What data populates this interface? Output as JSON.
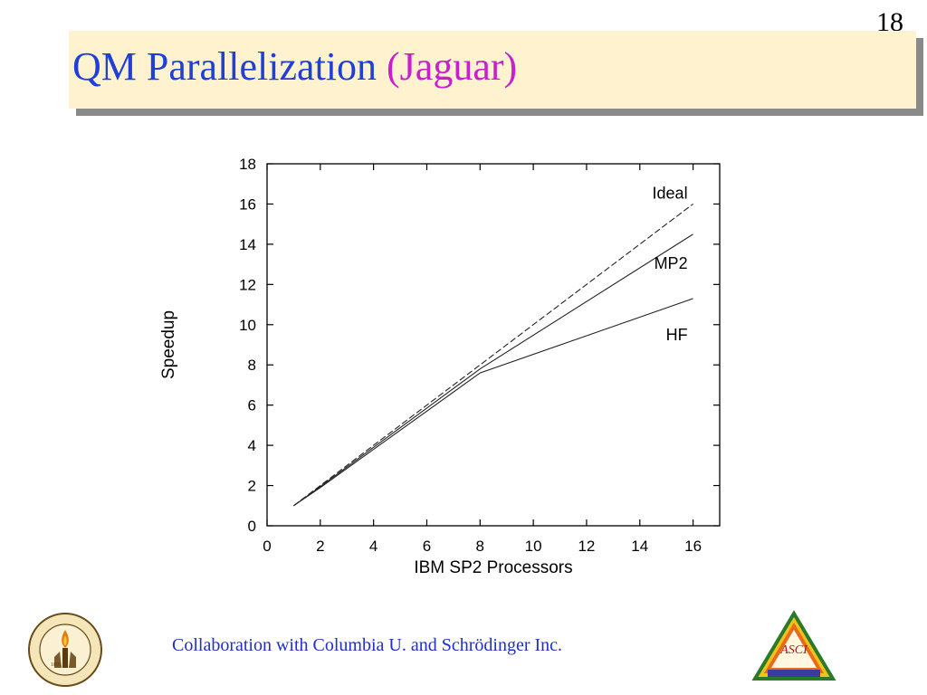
{
  "page_number": "18",
  "title": {
    "main": "QM Parallelization",
    "accent": "(Jaguar)"
  },
  "footer": "Collaboration with Columbia U. and Schrödinger Inc.",
  "logos": {
    "left": {
      "name": "caltech-seal",
      "text": "CALIFORNIA INSTITUTE OF TECHNOLOGY",
      "year": "1891"
    },
    "right": {
      "name": "asci-logo",
      "text": "ASCI",
      "subtitle": "Accelerated Strategic Computing Initiative",
      "bottom": "Lawrence Livermore"
    }
  },
  "colors": {
    "title": "#1f3fd8",
    "title_accent": "#c81fd0",
    "banner": "#fff2cf",
    "banner_shadow": "#8a8a8a",
    "footer": "#1f2fc8"
  },
  "chart_data": {
    "type": "line",
    "title": "",
    "xlabel": "IBM SP2 Processors",
    "ylabel": "Speedup",
    "xlim": [
      0,
      17
    ],
    "ylim": [
      0,
      18
    ],
    "xticks": [
      0,
      2,
      4,
      6,
      8,
      10,
      12,
      14,
      16
    ],
    "yticks": [
      0,
      2,
      4,
      6,
      8,
      10,
      12,
      14,
      16,
      18
    ],
    "grid": false,
    "series": [
      {
        "name": "Ideal",
        "style": "dashed",
        "x": [
          1,
          2,
          4,
          8,
          16
        ],
        "y": [
          1,
          2,
          4,
          8,
          16
        ]
      },
      {
        "name": "MP2",
        "style": "solid",
        "x": [
          1,
          2,
          4,
          8,
          16
        ],
        "y": [
          1,
          1.95,
          3.9,
          7.8,
          14.5
        ]
      },
      {
        "name": "HF",
        "style": "solid",
        "x": [
          1,
          2,
          4,
          8,
          16
        ],
        "y": [
          1,
          1.9,
          3.8,
          7.6,
          11.3
        ]
      }
    ]
  }
}
